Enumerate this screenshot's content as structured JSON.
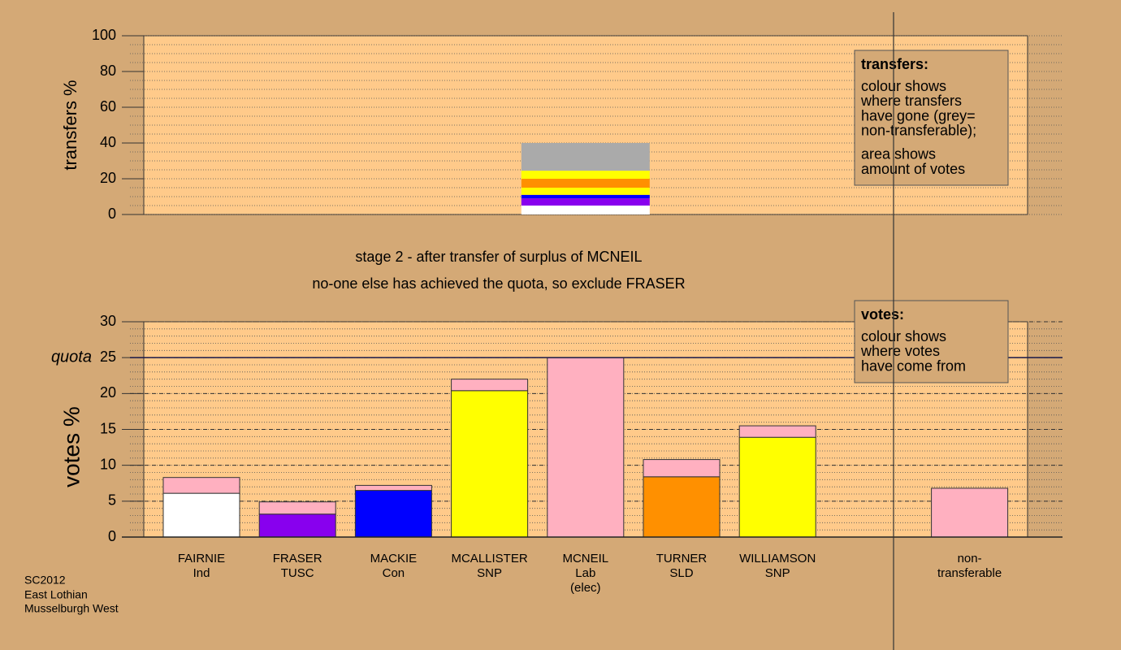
{
  "stage_text": [
    "stage 2 - after transfer of surplus of MCNEIL",
    "no-one else has achieved the quota, so exclude FRASER"
  ],
  "footer": [
    "SC2012",
    "East Lothian",
    "Musselburgh West"
  ],
  "chart_data": [
    {
      "type": "stacked-bar",
      "ylabel": "transfers %",
      "ylim": [
        0,
        100
      ],
      "yticks": [
        0,
        20,
        40,
        60,
        80,
        100
      ],
      "minor_step": 5,
      "outline": false,
      "bars": [
        {
          "segments": [
            {
              "value": 5,
              "color": "#ffffff"
            },
            {
              "value": 4,
              "color": "#8800ee"
            },
            {
              "value": 2,
              "color": "#0000ff"
            },
            {
              "value": 4,
              "color": "#ffff00"
            },
            {
              "value": 5,
              "color": "#ff9000"
            },
            {
              "value": 4.5,
              "color": "#ffff00"
            },
            {
              "value": 15.5,
              "color": "#aaaaaa"
            }
          ]
        }
      ],
      "legend": {
        "title": "transfers:",
        "paragraphs": [
          [
            "colour shows",
            "where transfers",
            "have gone (grey=",
            "non-transferable);"
          ],
          [
            "area shows",
            "amount of votes"
          ]
        ]
      }
    },
    {
      "type": "stacked-bar",
      "ylabel": "votes %",
      "ylim": [
        0,
        30
      ],
      "yticks": [
        0,
        5,
        10,
        15,
        20,
        25,
        30
      ],
      "minor_step": 1,
      "outline": true,
      "quota": {
        "label": "quota",
        "value": 25
      },
      "categories": [
        [
          "FAIRNIE",
          "Ind"
        ],
        [
          "FRASER",
          "TUSC"
        ],
        [
          "MACKIE",
          "Con"
        ],
        [
          "MCALLISTER",
          "SNP"
        ],
        [
          "MCNEIL",
          "Lab",
          "(elec)"
        ],
        [
          "TURNER",
          "SLD"
        ],
        [
          "WILLIAMSON",
          "SNP"
        ],
        [
          "non-",
          "transferable"
        ]
      ],
      "bars": [
        {
          "segments": [
            {
              "value": 6.1,
              "color": "#ffffff"
            },
            {
              "value": 2.2,
              "color": "#ffb0c0"
            }
          ]
        },
        {
          "segments": [
            {
              "value": 3.2,
              "color": "#8800ee"
            },
            {
              "value": 1.7,
              "color": "#ffb0c0"
            }
          ]
        },
        {
          "segments": [
            {
              "value": 6.5,
              "color": "#0000ff"
            },
            {
              "value": 0.7,
              "color": "#ffb0c0"
            }
          ]
        },
        {
          "segments": [
            {
              "value": 20.4,
              "color": "#ffff00"
            },
            {
              "value": 1.6,
              "color": "#ffb0c0"
            }
          ]
        },
        {
          "segments": [
            {
              "value": 25,
              "color": "#ffb0c0"
            }
          ]
        },
        {
          "segments": [
            {
              "value": 8.4,
              "color": "#ff9000"
            },
            {
              "value": 2.4,
              "color": "#ffb0c0"
            }
          ]
        },
        {
          "segments": [
            {
              "value": 13.9,
              "color": "#ffff00"
            },
            {
              "value": 1.6,
              "color": "#ffb0c0"
            }
          ]
        },
        {
          "segments": [
            {
              "value": 6.8,
              "color": "#ffb0c0"
            }
          ]
        }
      ],
      "legend": {
        "title": "votes:",
        "paragraphs": [
          [
            "colour shows",
            "where votes",
            "have come from"
          ]
        ]
      }
    }
  ]
}
